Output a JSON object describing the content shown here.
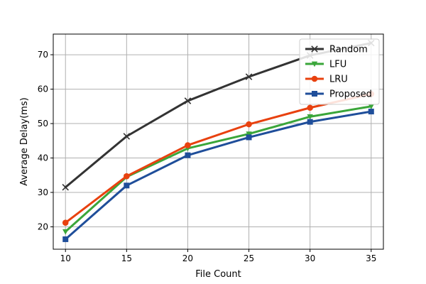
{
  "chart_data": {
    "type": "line",
    "xlabel": "File Count",
    "ylabel": "Average Delay(ms)",
    "x": [
      10,
      15,
      20,
      25,
      30,
      35
    ],
    "xlim": [
      9,
      36
    ],
    "ylim": [
      13.5,
      76
    ],
    "xticks": [
      10,
      15,
      20,
      25,
      30,
      35
    ],
    "yticks": [
      20,
      30,
      40,
      50,
      60,
      70
    ],
    "grid": true,
    "legend_position": "top-right",
    "series": [
      {
        "name": "Random",
        "values": [
          31.5,
          46.3,
          56.6,
          63.6,
          69.8,
          73.4
        ],
        "color": "#333333",
        "marker": "x"
      },
      {
        "name": "LFU",
        "values": [
          18.6,
          34.5,
          42.8,
          47.0,
          52.0,
          55.0
        ],
        "color": "#3aa63a",
        "marker": "triangle-down"
      },
      {
        "name": "LRU",
        "values": [
          21.2,
          34.7,
          43.7,
          49.8,
          54.6,
          58.6
        ],
        "color": "#e8410f",
        "marker": "circle"
      },
      {
        "name": "Proposed",
        "values": [
          16.4,
          32.0,
          40.8,
          46.0,
          50.5,
          53.5
        ],
        "color": "#1f4e9a",
        "marker": "square"
      }
    ]
  }
}
